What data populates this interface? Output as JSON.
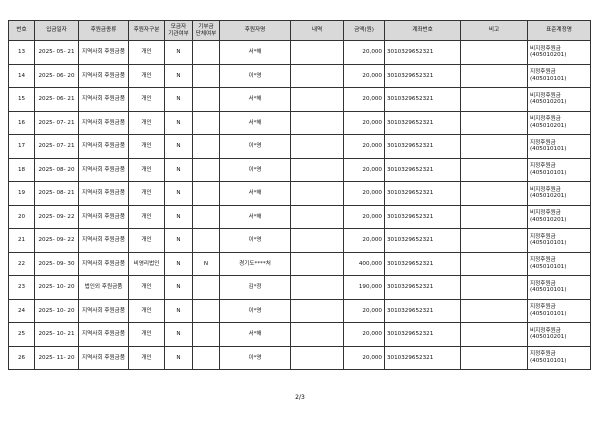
{
  "table": {
    "header": [
      "번호",
      "입금일자",
      "후원금종류",
      "후원자구분",
      "모금자\n기관여부",
      "기부금\n단체여부",
      "후원자명",
      "내역",
      "금액(원)",
      "계좌번호",
      "비고",
      "표준계정명"
    ],
    "rows": [
      [
        13,
        "2025- 05- 21",
        "지역사회 후원금품",
        "개인",
        "N",
        null,
        "서*해",
        null,
        "20,000",
        "3010329652321",
        null,
        "비지정후원금\n(405010201)"
      ],
      [
        14,
        "2025- 06- 20",
        "지역사회 후원금품",
        "개인",
        "N",
        null,
        "이*영",
        null,
        "20,000",
        "3010329652321",
        null,
        "지정후원금\n(405010101)"
      ],
      [
        15,
        "2025- 06- 21",
        "지역사회 후원금품",
        "개인",
        "N",
        null,
        "서*해",
        null,
        "20,000",
        "3010329652321",
        null,
        "비지정후원금\n(405010201)"
      ],
      [
        16,
        "2025- 07- 21",
        "지역사회 후원금품",
        "개인",
        "N",
        null,
        "서*해",
        null,
        "20,000",
        "3010329652321",
        null,
        "비지정후원금\n(405010201)"
      ],
      [
        17,
        "2025- 07- 21",
        "지역사회 후원금품",
        "개인",
        "N",
        null,
        "이*영",
        null,
        "20,000",
        "3010329652321",
        null,
        "지정후원금\n(405010101)"
      ],
      [
        18,
        "2025- 08- 20",
        "지역사회 후원금품",
        "개인",
        "N",
        null,
        "이*영",
        null,
        "20,000",
        "3010329652321",
        null,
        "지정후원금\n(405010101)"
      ],
      [
        19,
        "2025- 08- 21",
        "지역사회 후원금품",
        "개인",
        "N",
        null,
        "서*해",
        null,
        "20,000",
        "3010329652321",
        null,
        "비지정후원금\n(405010201)"
      ],
      [
        20,
        "2025- 09- 22",
        "지역사회 후원금품",
        "개인",
        "N",
        null,
        "서*해",
        null,
        "20,000",
        "3010329652321",
        null,
        "비지정후원금\n(405010201)"
      ],
      [
        21,
        "2025- 09- 22",
        "지역사회 후원금품",
        "개인",
        "N",
        null,
        "이*영",
        null,
        "20,000",
        "3010329652321",
        null,
        "지정후원금\n(405010101)"
      ],
      [
        22,
        "2025- 09- 30",
        "지역사회 후원금품",
        "비영리법인",
        "N",
        "N",
        "경기도****처",
        null,
        "400,000",
        "3010329652321",
        null,
        "지정후원금\n(405010101)"
      ],
      [
        23,
        "2025- 10- 20",
        "법인외 후원금품",
        "개인",
        "N",
        null,
        "김*정",
        null,
        "190,000",
        "3010329652321",
        null,
        "지정후원금\n(405010101)"
      ],
      [
        24,
        "2025- 10- 20",
        "지역사회 후원금품",
        "개인",
        "N",
        null,
        "이*영",
        null,
        "20,000",
        "3010329652321",
        null,
        "지정후원금\n(405010101)"
      ],
      [
        25,
        "2025- 10- 21",
        "지역사회 후원금품",
        "개인",
        "N",
        null,
        "서*해",
        null,
        "20,000",
        "3010329652321",
        null,
        "비지정후원금\n(405010201)"
      ],
      [
        26,
        "2025- 11- 20",
        "지역사회 후원금품",
        "개인",
        "N",
        null,
        "이*영",
        null,
        "20,000",
        "3010329652321",
        null,
        "지정후원금\n(405010101)"
      ]
    ]
  },
  "footer": {
    "page": "2/3"
  }
}
